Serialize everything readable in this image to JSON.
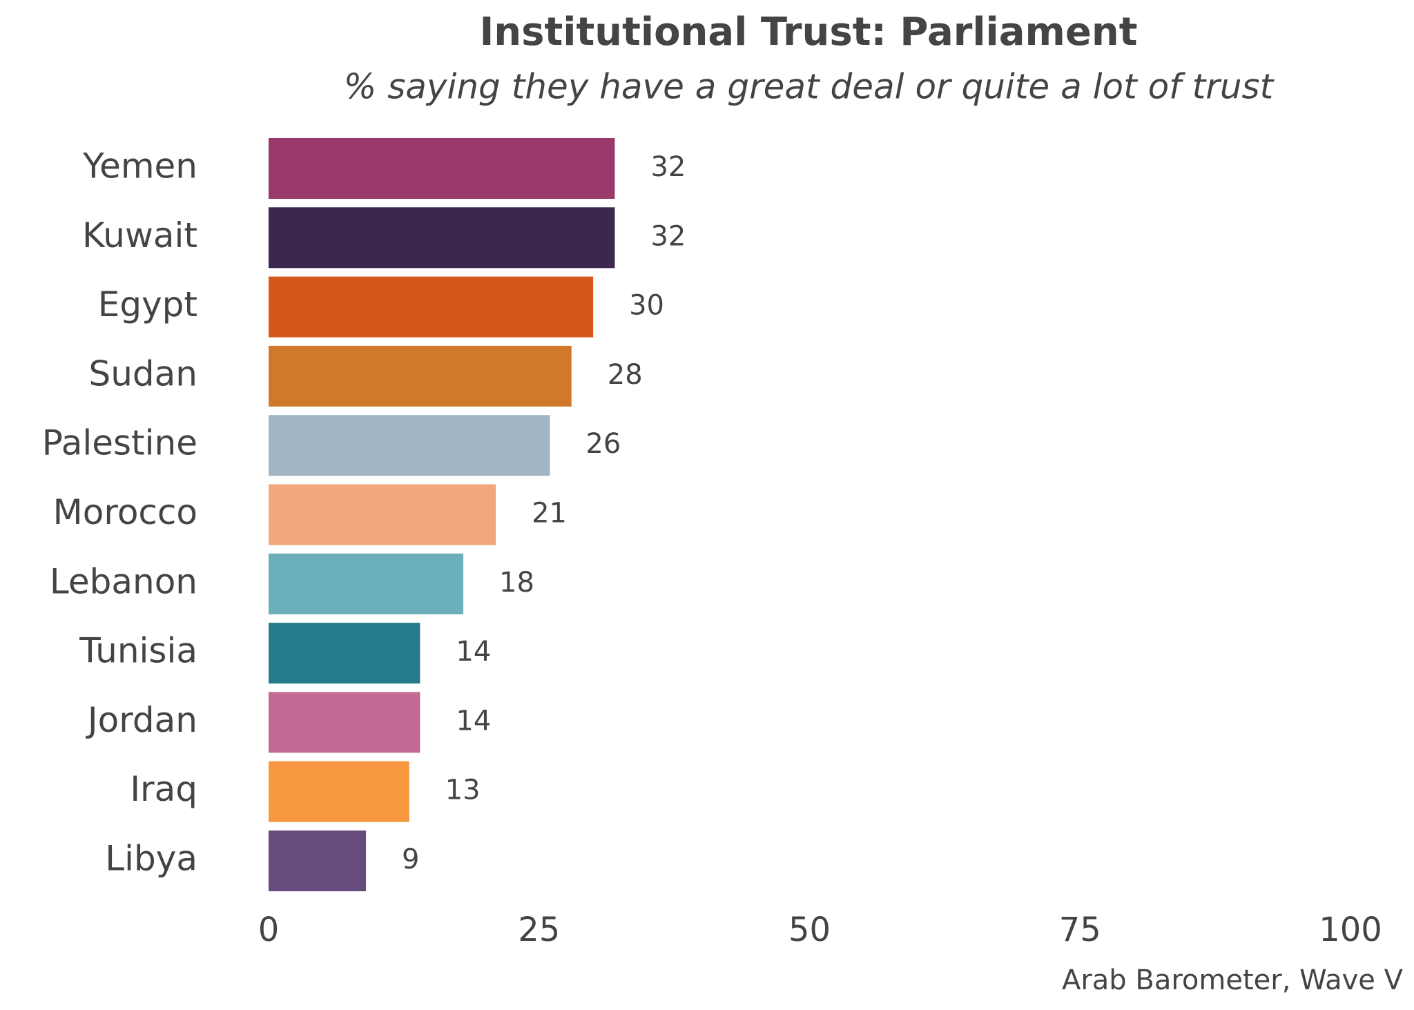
{
  "chart_data": {
    "type": "hbar",
    "title": "Institutional Trust: Parliament",
    "subtitle": "% saying they have a great deal or quite a lot of trust",
    "source": "Arab Barometer, Wave V",
    "categories": [
      "Yemen",
      "Kuwait",
      "Egypt",
      "Sudan",
      "Palestine",
      "Morocco",
      "Lebanon",
      "Tunisia",
      "Jordan",
      "Iraq",
      "Libya"
    ],
    "values": [
      32,
      32,
      30,
      28,
      26,
      21,
      18,
      14,
      14,
      13,
      9
    ],
    "colors": [
      "#9b3a6a",
      "#3c284e",
      "#d5571b",
      "#d0792b",
      "#a2b5c5",
      "#f2a77c",
      "#6aafbb",
      "#257c8b",
      "#c16a93",
      "#f79841",
      "#654c7c"
    ],
    "xlim": [
      0,
      100
    ],
    "xticks": [
      0,
      25,
      50,
      75,
      100
    ],
    "grid": false
  }
}
